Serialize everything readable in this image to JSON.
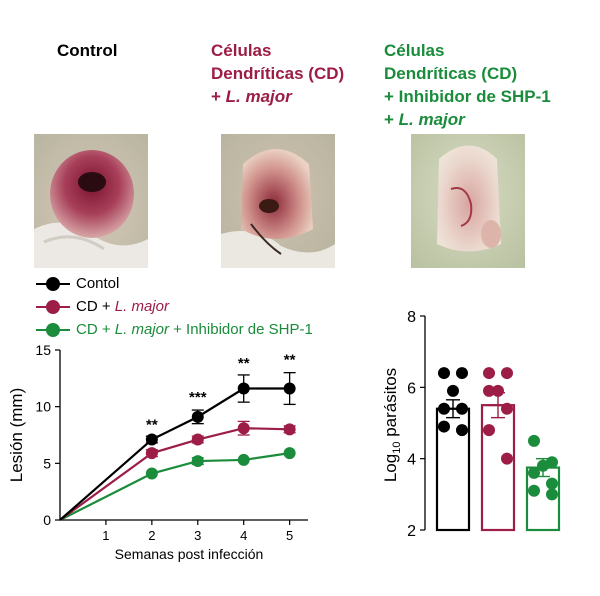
{
  "groups": [
    {
      "lines": [
        {
          "text": "Control",
          "italic": false
        }
      ],
      "color": "#000000"
    },
    {
      "lines": [
        {
          "text": "Células",
          "italic": false
        },
        {
          "text": "Dendríticas (CD)",
          "italic": false
        },
        {
          "prefix": "+ ",
          "text": "L. major",
          "italic": true
        }
      ],
      "color": "#9c1d45"
    },
    {
      "lines": [
        {
          "text": "Células",
          "italic": false
        },
        {
          "text": "Dendríticas (CD)",
          "italic": false
        },
        {
          "text": "+ Inhibidor de SHP-1",
          "italic": false
        },
        {
          "prefix": "+ ",
          "text": "L. major",
          "italic": true
        }
      ],
      "color": "#1a8c3b"
    }
  ],
  "legend": [
    {
      "parts": [
        "Contol"
      ],
      "color": "#000000"
    },
    {
      "parts": [
        "CD + ",
        "L. major"
      ],
      "color": "#9c1d45"
    },
    {
      "parts": [
        "CD + ",
        "L. major",
        " + Inhibidor de SHP-1"
      ],
      "color": "#1a8c3b"
    }
  ],
  "colors": {
    "control": "#000000",
    "cd": "#9c1d45",
    "shp1": "#1a8c3b"
  },
  "chart_data": [
    {
      "type": "line",
      "xlabel": "Semanas post infección",
      "ylabel": "Lesión  (mm)",
      "xlim": [
        0,
        5.4
      ],
      "ylim": [
        0,
        15
      ],
      "xticks": [
        1,
        2,
        3,
        4,
        5
      ],
      "yticks": [
        0,
        5,
        10,
        15
      ],
      "x": [
        0,
        2,
        3,
        4,
        5
      ],
      "series": [
        {
          "name": "Contol",
          "color": "#000000",
          "values": [
            0,
            7.1,
            9.1,
            11.6,
            11.6
          ],
          "err": [
            0,
            0.3,
            0.6,
            1.2,
            1.4
          ]
        },
        {
          "name": "CD + L. major",
          "color": "#9c1d45",
          "values": [
            0,
            5.9,
            7.1,
            8.1,
            8.0
          ],
          "err": [
            0,
            0.3,
            0.3,
            0.6,
            0.3
          ]
        },
        {
          "name": "CD + L. major + Inhibidor de SHP-1",
          "color": "#1a8c3b",
          "values": [
            0,
            4.1,
            5.2,
            5.3,
            5.9
          ],
          "err": [
            0,
            0.2,
            0.3,
            0.2,
            0.2
          ]
        }
      ],
      "significance": [
        {
          "x": 2,
          "label": "**",
          "y": 8.0
        },
        {
          "x": 3,
          "label": "***",
          "y": 10.4
        },
        {
          "x": 4,
          "label": "**",
          "y": 13.4
        },
        {
          "x": 5,
          "label": "**",
          "y": 13.7
        }
      ],
      "grid": false
    },
    {
      "type": "bar",
      "ylabel": "Log10 parásitos",
      "ylabel_main": "Log",
      "ylabel_sub": "10",
      "ylabel_rest": " parásitos",
      "ylim": [
        2,
        8
      ],
      "yticks": [
        2,
        4,
        6,
        8
      ],
      "bars": [
        {
          "color": "#000000",
          "mean": 5.4,
          "err": 0.25,
          "points": [
            6.4,
            6.4,
            5.9,
            5.4,
            5.4,
            4.9,
            4.8
          ]
        },
        {
          "color": "#9c1d45",
          "mean": 5.5,
          "err": 0.35,
          "points": [
            6.4,
            6.4,
            5.9,
            5.9,
            5.4,
            4.8,
            4.0
          ]
        },
        {
          "color": "#1a8c3b",
          "mean": 3.75,
          "err": 0.25,
          "points": [
            4.5,
            3.9,
            3.8,
            3.6,
            3.3,
            3.1,
            3.0
          ]
        }
      ],
      "grid": false
    }
  ]
}
